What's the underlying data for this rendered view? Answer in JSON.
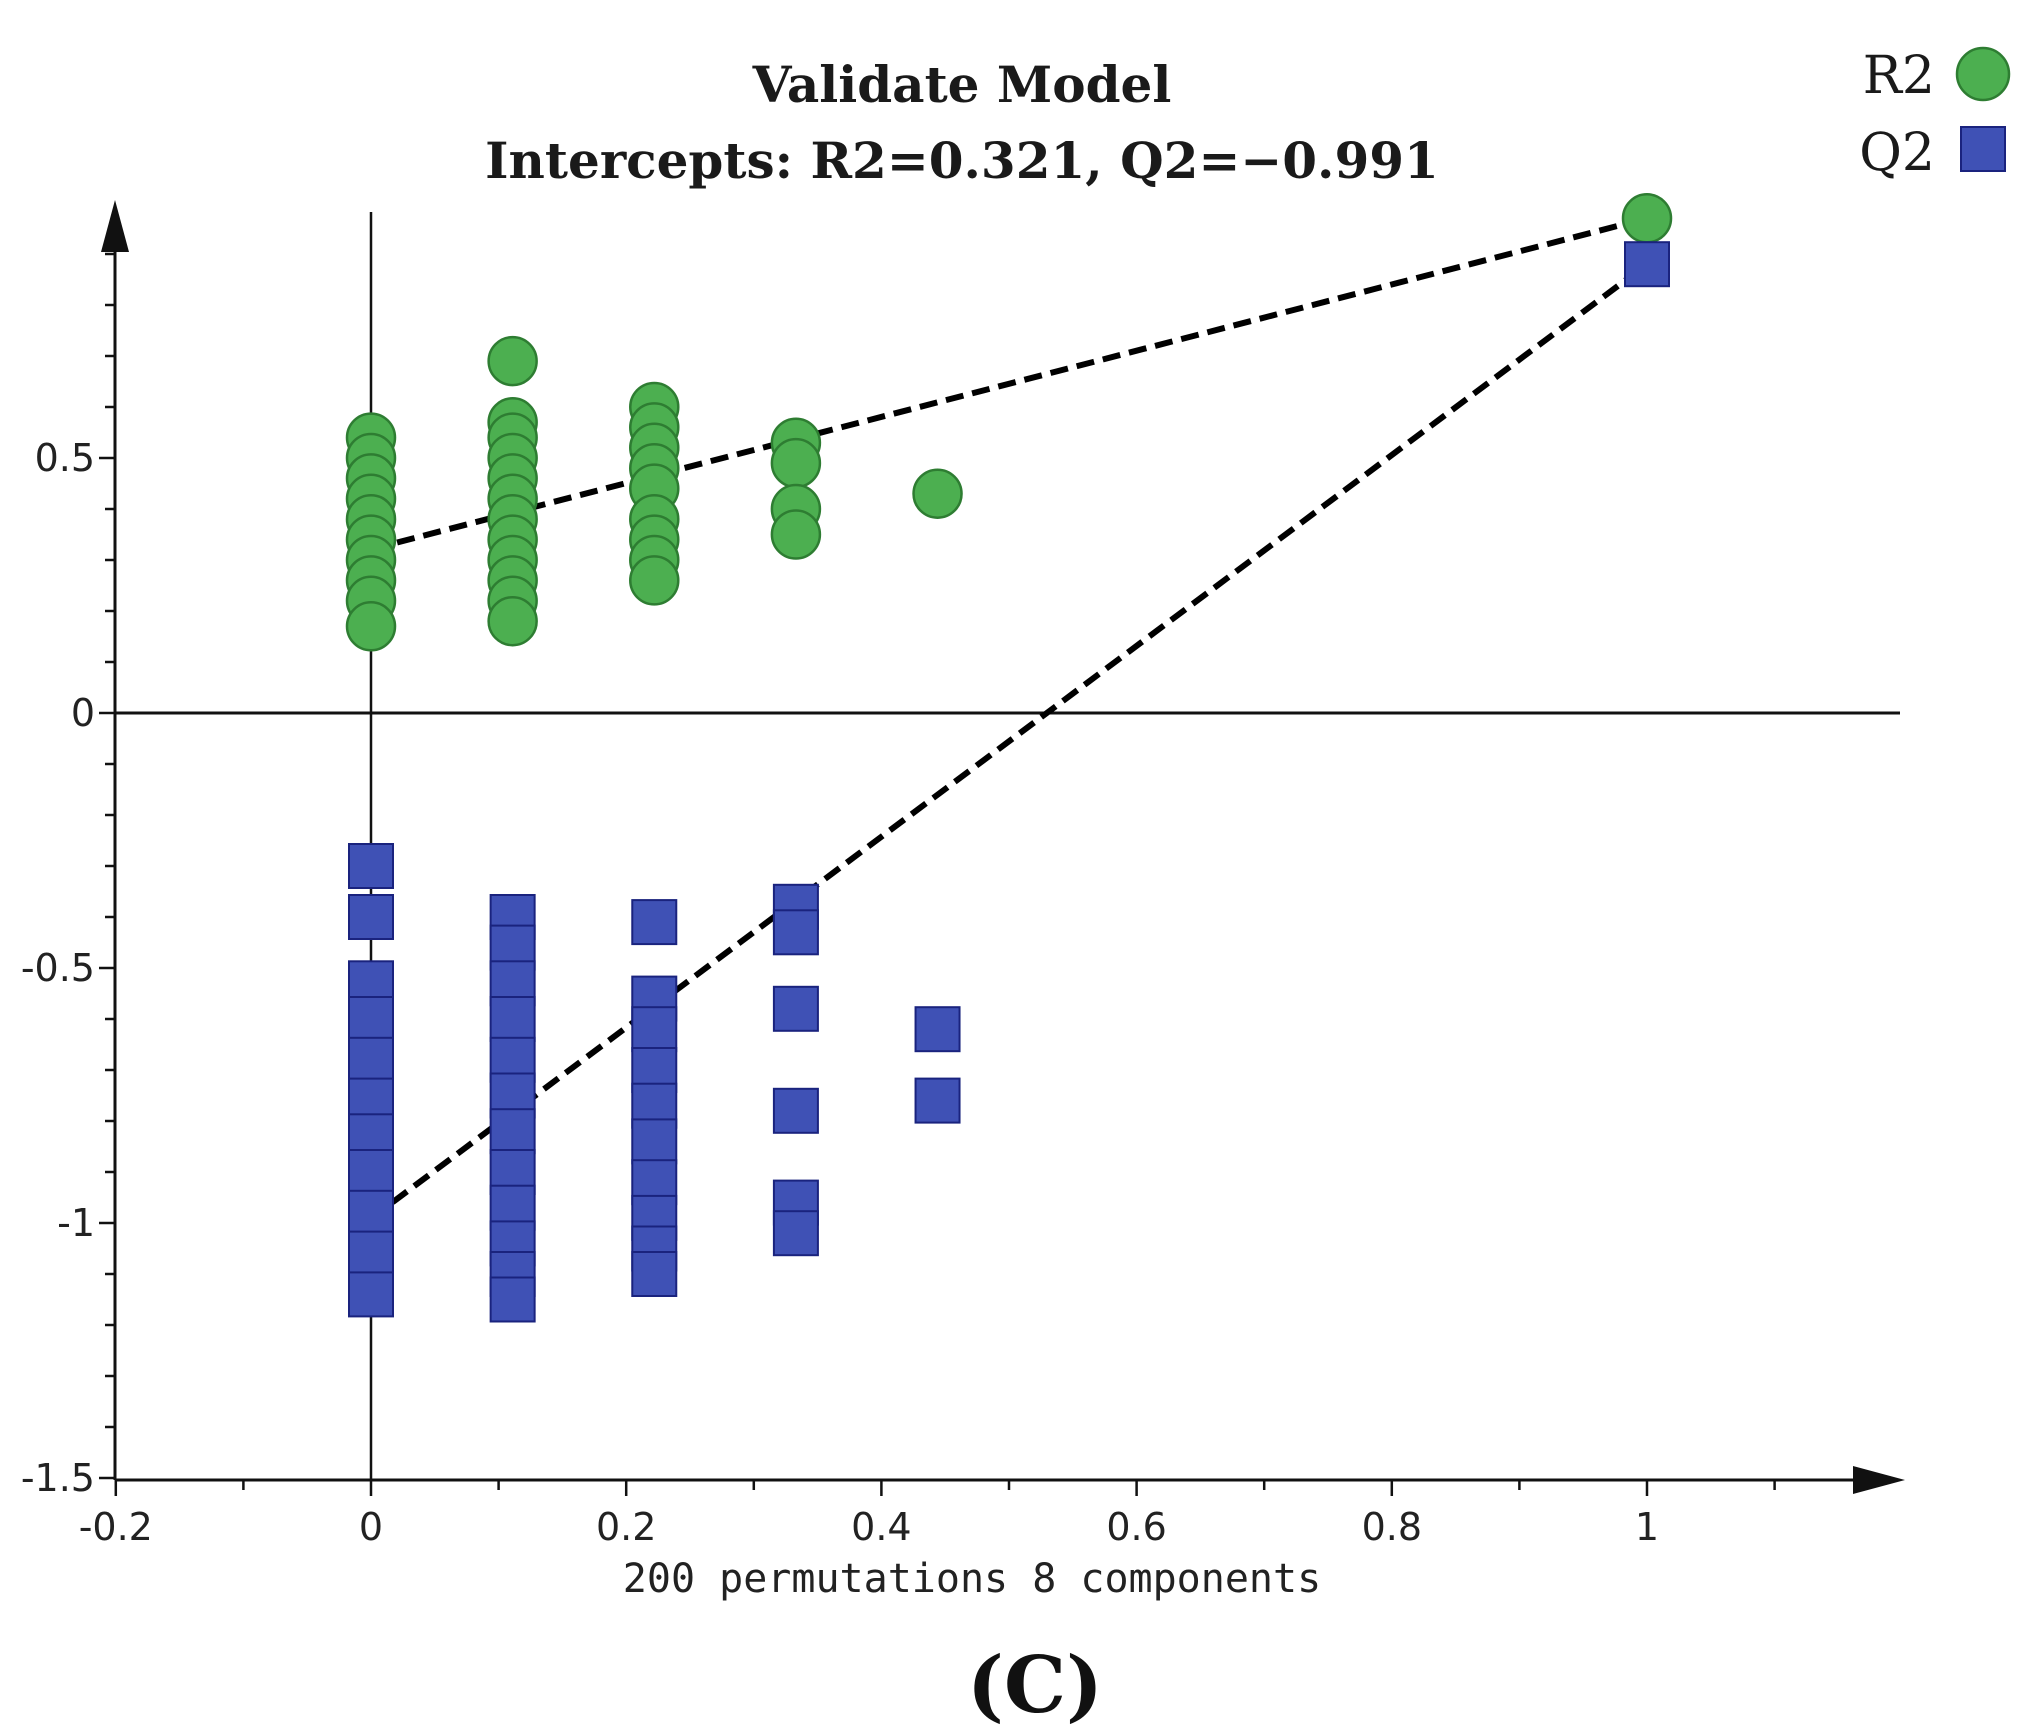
{
  "caption": "(C)",
  "chart_data": {
    "type": "scatter",
    "title": "Validate Model",
    "subtitle": "Intercepts: R2=0.321, Q2=−0.991",
    "xlabel": "200 permutations 8 components",
    "ylabel": "",
    "xlim": [
      -0.2,
      1.2
    ],
    "ylim": [
      -1.5,
      1.0
    ],
    "x_ticks": [
      -0.2,
      0,
      0.2,
      0.4,
      0.6,
      0.8,
      1
    ],
    "x_tick_labels": [
      "-0.2",
      "0",
      "0.2",
      "0.4",
      "0.6",
      "0.8",
      "1"
    ],
    "y_ticks": [
      -1.5,
      -1,
      -0.5,
      0,
      0.5
    ],
    "y_tick_labels": [
      "-1.5",
      "-1",
      "-0.5",
      "0",
      "0.5"
    ],
    "legend": [
      "R2",
      "Q2"
    ],
    "legend_position": "top-right",
    "colors": {
      "R2": "#4caf50",
      "R2_edge": "#2e7d32",
      "Q2": "#3f51b5",
      "Q2_edge": "#1a237e"
    },
    "series": [
      {
        "name": "R2",
        "marker": "circle",
        "points": [
          {
            "x": 0,
            "y": 0.54
          },
          {
            "x": 0,
            "y": 0.5
          },
          {
            "x": 0,
            "y": 0.46
          },
          {
            "x": 0,
            "y": 0.42
          },
          {
            "x": 0,
            "y": 0.38
          },
          {
            "x": 0,
            "y": 0.34
          },
          {
            "x": 0,
            "y": 0.3
          },
          {
            "x": 0,
            "y": 0.26
          },
          {
            "x": 0,
            "y": 0.22
          },
          {
            "x": 0,
            "y": 0.17
          },
          {
            "x": 0.111,
            "y": 0.69
          },
          {
            "x": 0.111,
            "y": 0.57
          },
          {
            "x": 0.111,
            "y": 0.54
          },
          {
            "x": 0.111,
            "y": 0.5
          },
          {
            "x": 0.111,
            "y": 0.46
          },
          {
            "x": 0.111,
            "y": 0.42
          },
          {
            "x": 0.111,
            "y": 0.38
          },
          {
            "x": 0.111,
            "y": 0.34
          },
          {
            "x": 0.111,
            "y": 0.3
          },
          {
            "x": 0.111,
            "y": 0.26
          },
          {
            "x": 0.111,
            "y": 0.22
          },
          {
            "x": 0.111,
            "y": 0.18
          },
          {
            "x": 0.222,
            "y": 0.6
          },
          {
            "x": 0.222,
            "y": 0.56
          },
          {
            "x": 0.222,
            "y": 0.52
          },
          {
            "x": 0.222,
            "y": 0.48
          },
          {
            "x": 0.222,
            "y": 0.44
          },
          {
            "x": 0.222,
            "y": 0.38
          },
          {
            "x": 0.222,
            "y": 0.34
          },
          {
            "x": 0.222,
            "y": 0.3
          },
          {
            "x": 0.222,
            "y": 0.26
          },
          {
            "x": 0.333,
            "y": 0.53
          },
          {
            "x": 0.333,
            "y": 0.49
          },
          {
            "x": 0.333,
            "y": 0.4
          },
          {
            "x": 0.333,
            "y": 0.35
          },
          {
            "x": 0.444,
            "y": 0.43
          },
          {
            "x": 1,
            "y": 0.97
          }
        ]
      },
      {
        "name": "Q2",
        "marker": "square",
        "points": [
          {
            "x": 0,
            "y": -0.3
          },
          {
            "x": 0,
            "y": -0.4
          },
          {
            "x": 0,
            "y": -0.53
          },
          {
            "x": 0,
            "y": -0.6
          },
          {
            "x": 0,
            "y": -0.68
          },
          {
            "x": 0,
            "y": -0.76
          },
          {
            "x": 0,
            "y": -0.83
          },
          {
            "x": 0,
            "y": -0.9
          },
          {
            "x": 0,
            "y": -0.98
          },
          {
            "x": 0,
            "y": -1.06
          },
          {
            "x": 0,
            "y": -1.14
          },
          {
            "x": 0.111,
            "y": -0.4
          },
          {
            "x": 0.111,
            "y": -0.46
          },
          {
            "x": 0.111,
            "y": -0.53
          },
          {
            "x": 0.111,
            "y": -0.6
          },
          {
            "x": 0.111,
            "y": -0.68
          },
          {
            "x": 0.111,
            "y": -0.75
          },
          {
            "x": 0.111,
            "y": -0.82
          },
          {
            "x": 0.111,
            "y": -0.9
          },
          {
            "x": 0.111,
            "y": -0.97
          },
          {
            "x": 0.111,
            "y": -1.04
          },
          {
            "x": 0.111,
            "y": -1.1
          },
          {
            "x": 0.111,
            "y": -1.15
          },
          {
            "x": 0.222,
            "y": -0.41
          },
          {
            "x": 0.222,
            "y": -0.56
          },
          {
            "x": 0.222,
            "y": -0.62
          },
          {
            "x": 0.222,
            "y": -0.7
          },
          {
            "x": 0.222,
            "y": -0.77
          },
          {
            "x": 0.222,
            "y": -0.84
          },
          {
            "x": 0.222,
            "y": -0.92
          },
          {
            "x": 0.222,
            "y": -0.99
          },
          {
            "x": 0.222,
            "y": -1.05
          },
          {
            "x": 0.222,
            "y": -1.1
          },
          {
            "x": 0.333,
            "y": -0.38
          },
          {
            "x": 0.333,
            "y": -0.43
          },
          {
            "x": 0.333,
            "y": -0.58
          },
          {
            "x": 0.333,
            "y": -0.78
          },
          {
            "x": 0.333,
            "y": -0.96
          },
          {
            "x": 0.333,
            "y": -1.02
          },
          {
            "x": 0.444,
            "y": -0.62
          },
          {
            "x": 0.444,
            "y": -0.76
          },
          {
            "x": 1,
            "y": 0.88
          }
        ]
      }
    ],
    "regression_lines": [
      {
        "name": "R2",
        "from": {
          "x": 0,
          "y": 0.321
        },
        "to": {
          "x": 1,
          "y": 0.97
        },
        "style": "dashed"
      },
      {
        "name": "Q2",
        "from": {
          "x": 0,
          "y": -0.991
        },
        "to": {
          "x": 1,
          "y": 0.88
        },
        "style": "dashed"
      }
    ]
  }
}
